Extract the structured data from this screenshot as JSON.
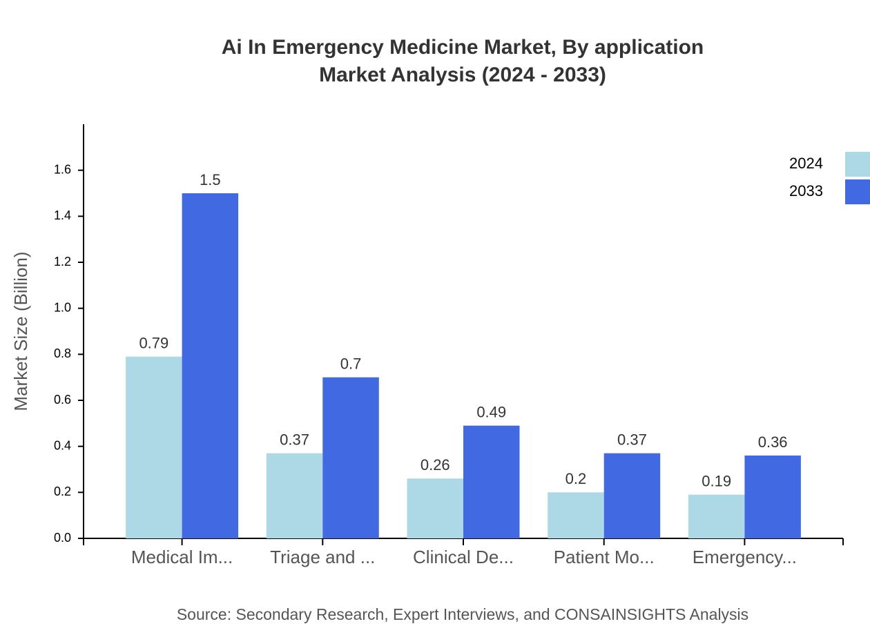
{
  "chart_data": {
    "type": "bar",
    "title": "Ai In Emergency Medicine Market, By application",
    "subtitle": "Market Analysis (2024 - 2033)",
    "y_label": "Market Size (Billion)",
    "source": "Source: Secondary Research, Expert Interviews, and CONSAINSIGHTS Analysis",
    "categories": [
      "Medical Im...",
      "Triage and ...",
      "Clinical De...",
      "Patient Mo...",
      "Emergency..."
    ],
    "series": [
      {
        "name": "2024",
        "color": "#add8e6",
        "values": [
          0.79,
          0.37,
          0.26,
          0.2,
          0.19
        ]
      },
      {
        "name": "2033",
        "color": "#4169e1",
        "values": [
          1.5,
          0.7,
          0.49,
          0.37,
          0.36
        ]
      }
    ],
    "ylim": [
      0,
      1.8
    ],
    "yticks": [
      {
        "value": 0,
        "label": "0.0"
      },
      0.2,
      0.4,
      0.6,
      0.8,
      {
        "value": 1,
        "label": "1.0"
      },
      1.2,
      1.4,
      1.6
    ],
    "legend": "top-right"
  }
}
